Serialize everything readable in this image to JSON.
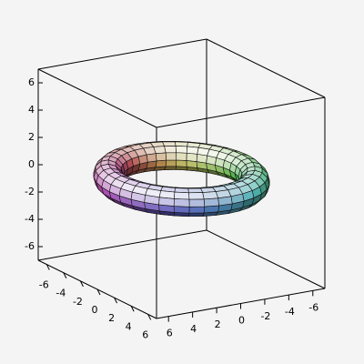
{
  "chart_data": {
    "type": "surface3d",
    "xlim": [
      -7,
      7
    ],
    "ylim": [
      -7,
      7
    ],
    "zlim": [
      -7,
      7
    ],
    "xticks": [
      -6,
      -4,
      -2,
      0,
      2,
      4,
      6
    ],
    "yticks": [
      -6,
      -4,
      -2,
      0,
      2,
      4,
      6
    ],
    "zticks": [
      -6,
      -4,
      -2,
      0,
      2,
      4,
      6
    ],
    "surface": {
      "shape": "torus",
      "major_radius": 5,
      "minor_radius": 1
    }
  }
}
